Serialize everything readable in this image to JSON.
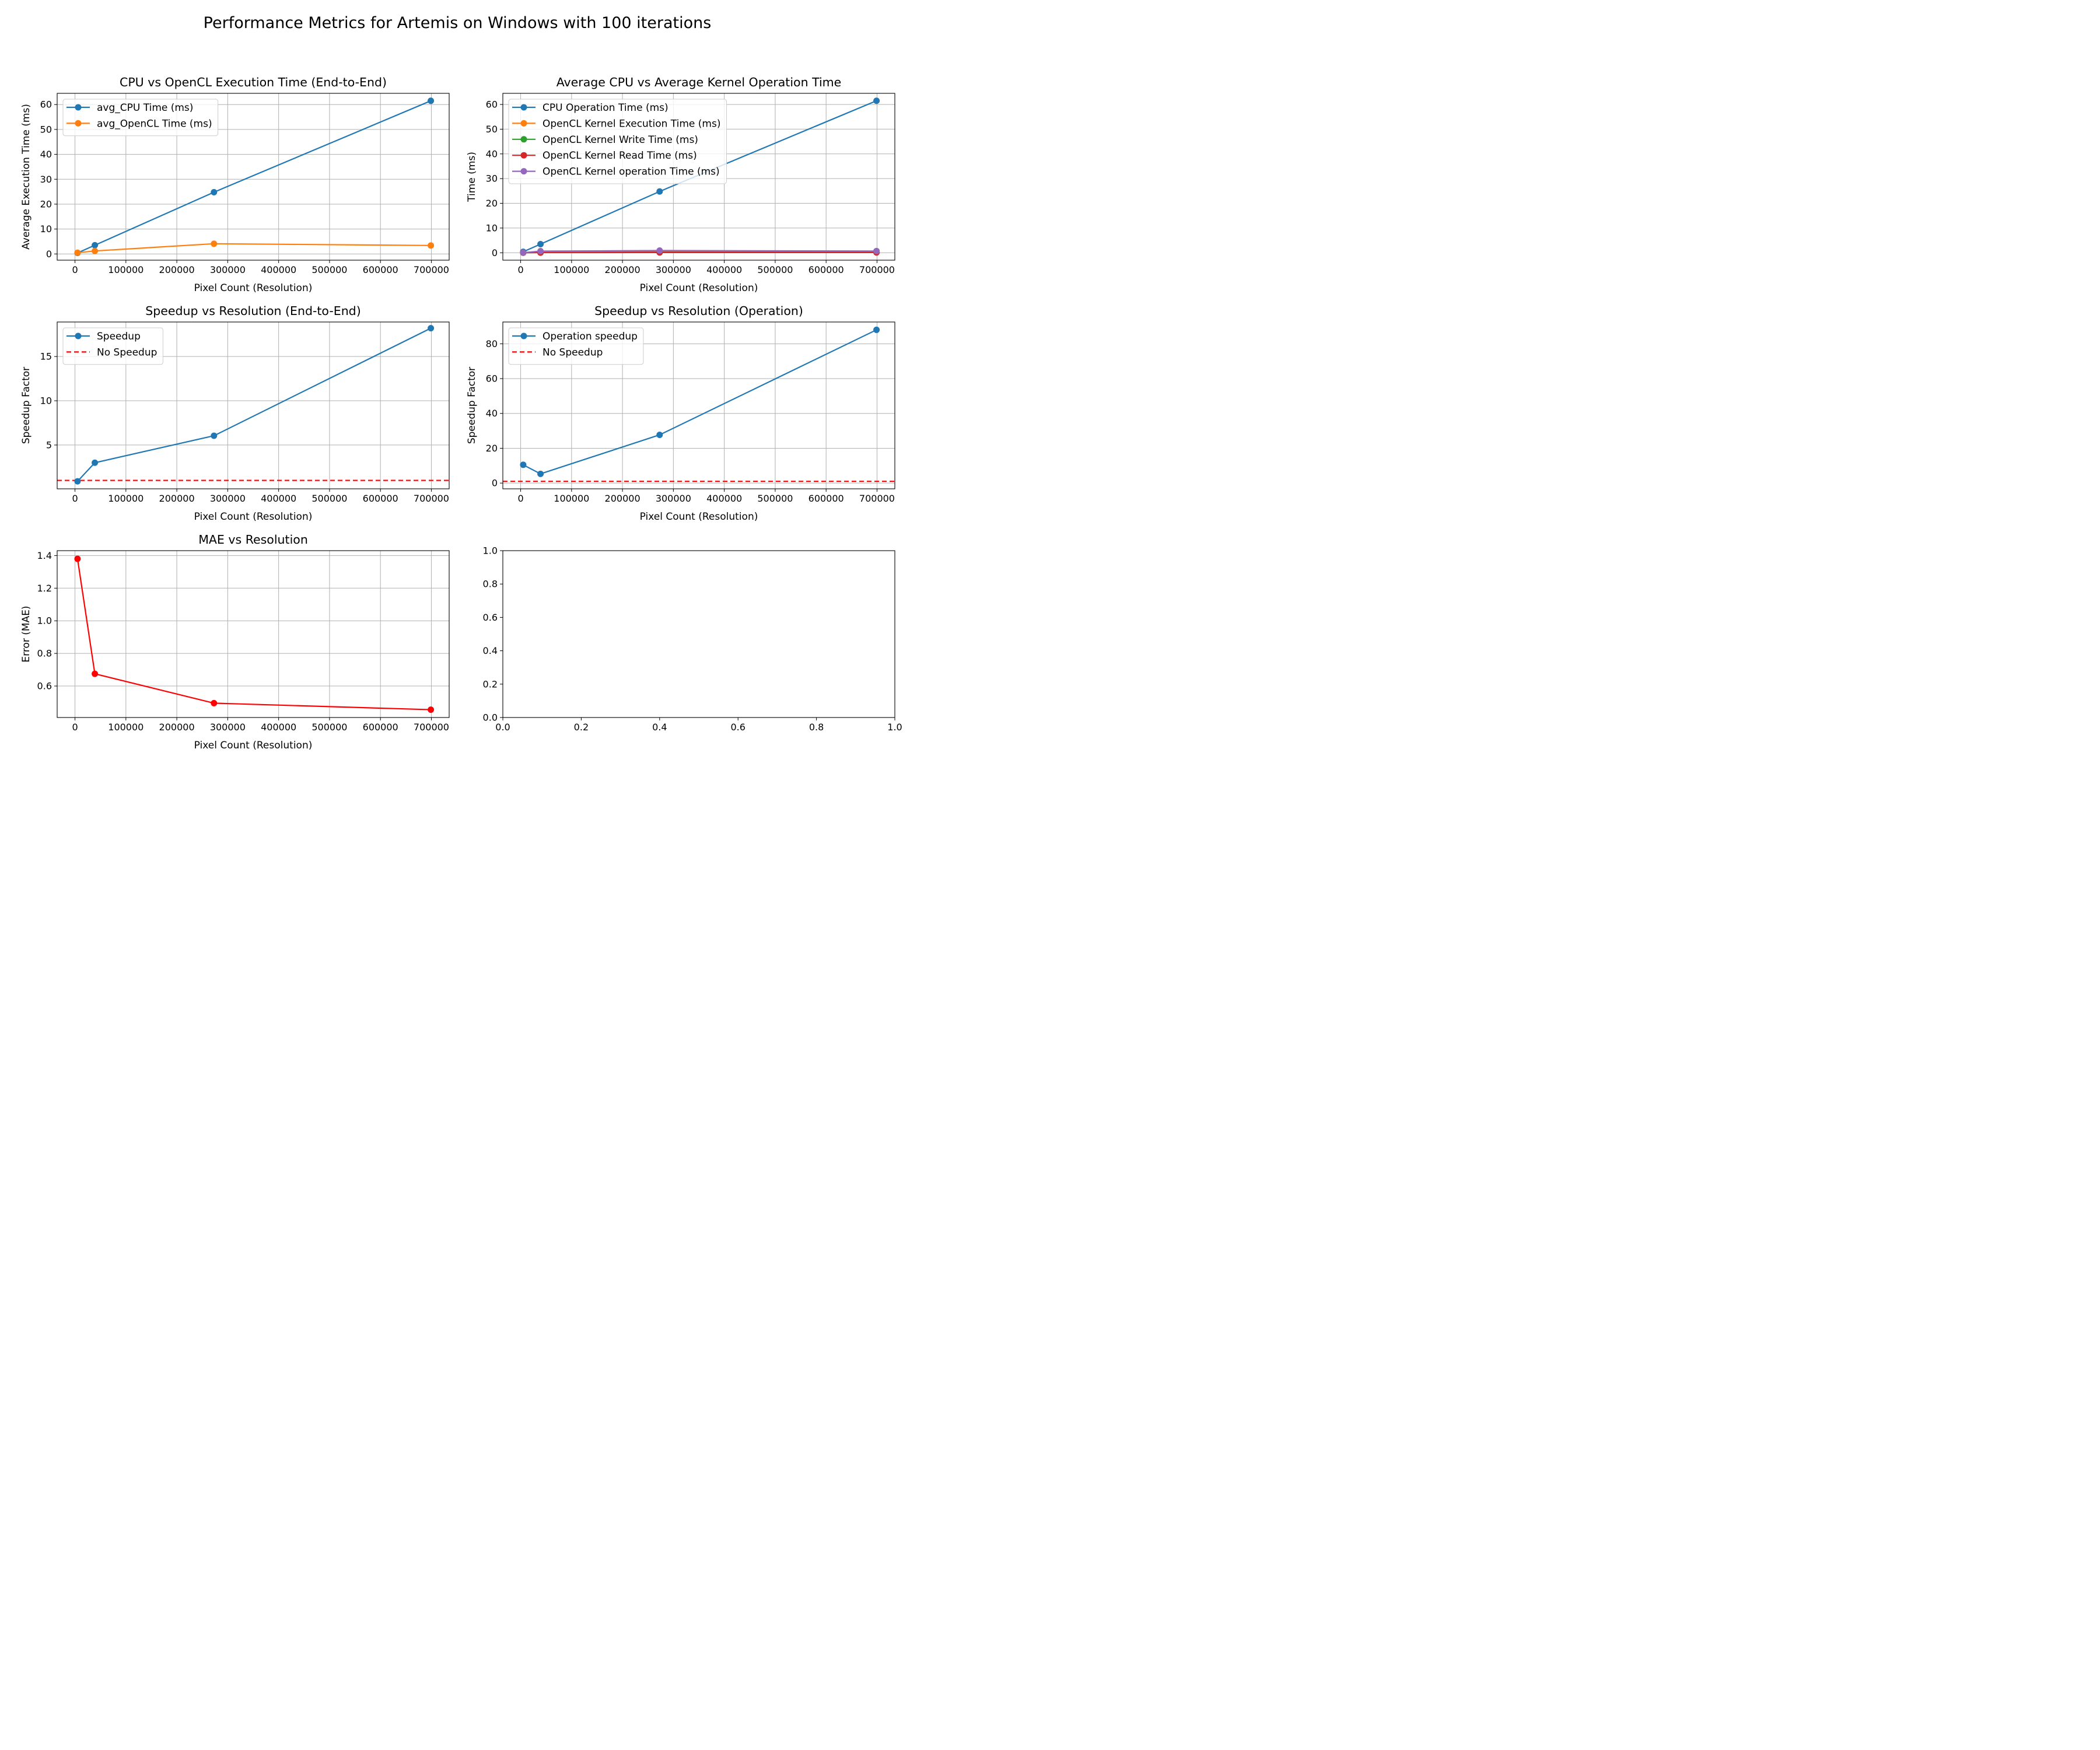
{
  "figure": {
    "title": "Performance Metrics for Artemis on Windows with 100 iterations"
  },
  "colors": {
    "blue": "#1f77b4",
    "orange": "#ff7f0e",
    "green": "#2ca02c",
    "red": "#d62728",
    "purple": "#9467bd",
    "pure_red": "#ff0000",
    "grid": "#b0b0b0"
  },
  "chart_data": [
    {
      "type": "line",
      "title": "CPU vs OpenCL Execution Time (End-to-End)",
      "xlabel": "Pixel Count (Resolution)",
      "ylabel": "Average Execution Time (ms)",
      "xlim": [
        -35000,
        735000
      ],
      "ylim": [
        -2.5,
        64.5
      ],
      "xticks": [
        0,
        100000,
        200000,
        300000,
        400000,
        500000,
        600000,
        700000
      ],
      "yticks": [
        0,
        10,
        20,
        30,
        40,
        50,
        60
      ],
      "grid": true,
      "legend_position": "top-left",
      "x": [
        5000,
        39000,
        273000,
        699000
      ],
      "series": [
        {
          "name": "avg_CPU Time (ms)",
          "color": "#1f77b4",
          "marker": "o",
          "values": [
            0.4,
            3.5,
            24.8,
            61.5
          ]
        },
        {
          "name": "avg_OpenCL Time (ms)",
          "color": "#ff7f0e",
          "marker": "o",
          "values": [
            0.5,
            1.2,
            4.1,
            3.4
          ]
        }
      ]
    },
    {
      "type": "line",
      "title": "Average CPU vs Average Kernel Operation Time",
      "xlabel": "Pixel Count (Resolution)",
      "ylabel": "Time (ms)",
      "xlim": [
        -35000,
        735000
      ],
      "ylim": [
        -3,
        64.5
      ],
      "xticks": [
        0,
        100000,
        200000,
        300000,
        400000,
        500000,
        600000,
        700000
      ],
      "yticks": [
        0,
        10,
        20,
        30,
        40,
        50,
        60
      ],
      "grid": true,
      "legend_position": "top-left",
      "x": [
        5000,
        39000,
        273000,
        699000
      ],
      "series": [
        {
          "name": "CPU Operation Time (ms)",
          "color": "#1f77b4",
          "marker": "o",
          "values": [
            0.4,
            3.5,
            24.8,
            61.5
          ]
        },
        {
          "name": "OpenCL Kernel Execution Time (ms)",
          "color": "#ff7f0e",
          "marker": "o",
          "values": [
            0.03,
            0.15,
            0.5,
            0.4
          ]
        },
        {
          "name": "OpenCL Kernel Write Time (ms)",
          "color": "#2ca02c",
          "marker": "o",
          "values": [
            0.02,
            0.1,
            0.3,
            0.25
          ]
        },
        {
          "name": "OpenCL Kernel Read Time (ms)",
          "color": "#d62728",
          "marker": "o",
          "values": [
            0.01,
            0.05,
            0.1,
            0.1
          ]
        },
        {
          "name": "OpenCL Kernel operation Time (ms)",
          "color": "#9467bd",
          "marker": "o",
          "values": [
            0.04,
            0.65,
            0.9,
            0.7
          ]
        }
      ]
    },
    {
      "type": "line",
      "title": "Speedup vs Resolution (End-to-End)",
      "xlabel": "Pixel Count (Resolution)",
      "ylabel": "Speedup Factor",
      "xlim": [
        -35000,
        735000
      ],
      "ylim": [
        0.05,
        18.9
      ],
      "xticks": [
        0,
        100000,
        200000,
        300000,
        400000,
        500000,
        600000,
        700000
      ],
      "yticks": [
        5,
        10,
        15
      ],
      "grid": true,
      "legend_position": "top-left",
      "x": [
        5000,
        39000,
        273000,
        699000
      ],
      "series": [
        {
          "name": "Speedup",
          "color": "#1f77b4",
          "marker": "o",
          "values": [
            0.9,
            3.0,
            6.05,
            18.2
          ]
        }
      ],
      "reference_line": {
        "name": "No Speedup",
        "y": 1,
        "color": "#ff0000",
        "style": "dashed"
      }
    },
    {
      "type": "line",
      "title": "Speedup vs Resolution (Operation)",
      "xlabel": "Pixel Count (Resolution)",
      "ylabel": "Speedup Factor",
      "xlim": [
        -35000,
        735000
      ],
      "ylim": [
        -3.3,
        92.5
      ],
      "xticks": [
        0,
        100000,
        200000,
        300000,
        400000,
        500000,
        600000,
        700000
      ],
      "yticks": [
        0,
        20,
        40,
        60,
        80
      ],
      "grid": true,
      "legend_position": "top-left",
      "x": [
        5000,
        39000,
        273000,
        699000
      ],
      "series": [
        {
          "name": "Operation speedup",
          "color": "#1f77b4",
          "marker": "o",
          "values": [
            10.5,
            5.3,
            27.7,
            88.0
          ]
        }
      ],
      "reference_line": {
        "name": "No Speedup",
        "y": 1,
        "color": "#ff0000",
        "style": "dashed"
      }
    },
    {
      "type": "line",
      "title": "MAE vs Resolution",
      "xlabel": "Pixel Count (Resolution)",
      "ylabel": "Error (MAE)",
      "xlim": [
        -35000,
        735000
      ],
      "ylim": [
        0.407,
        1.43
      ],
      "xticks": [
        0,
        100000,
        200000,
        300000,
        400000,
        500000,
        600000,
        700000
      ],
      "yticks": [
        0.6,
        0.8,
        1.0,
        1.2,
        1.4
      ],
      "ytick_labels": [
        "0.6",
        "0.8",
        "1.0",
        "1.2",
        "1.4"
      ],
      "grid": true,
      "x": [
        5000,
        39000,
        273000,
        699000
      ],
      "series": [
        {
          "color": "#ff0000",
          "marker": "o",
          "values": [
            1.38,
            0.675,
            0.495,
            0.455
          ]
        }
      ]
    },
    {
      "type": "line",
      "title": "",
      "xlabel": "",
      "ylabel": "",
      "xlim": [
        0,
        1
      ],
      "ylim": [
        0,
        1
      ],
      "xticks": [
        0,
        0.2,
        0.4,
        0.6,
        0.8,
        1.0
      ],
      "yticks": [
        0,
        0.2,
        0.4,
        0.6,
        0.8,
        1.0
      ],
      "xtick_labels": [
        "0.0",
        "0.2",
        "0.4",
        "0.6",
        "0.8",
        "1.0"
      ],
      "ytick_labels": [
        "0.0",
        "0.2",
        "0.4",
        "0.6",
        "0.8",
        "1.0"
      ],
      "grid": false,
      "x": [],
      "series": []
    }
  ]
}
